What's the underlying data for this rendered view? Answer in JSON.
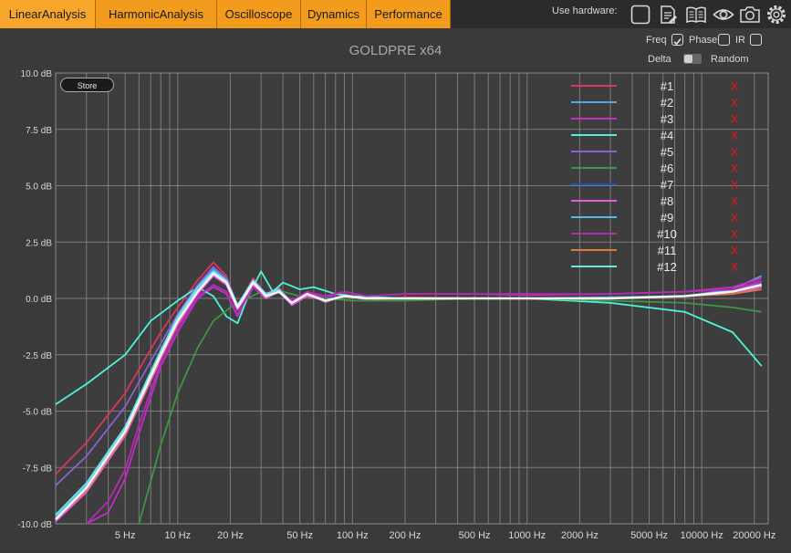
{
  "tabs": [
    {
      "label": "LinearAnalysis",
      "active": true
    },
    {
      "label": "HarmonicAnalysis",
      "active": false
    },
    {
      "label": "Oscilloscope",
      "active": false
    },
    {
      "label": "Dynamics",
      "active": false
    },
    {
      "label": "Performance",
      "active": false
    }
  ],
  "hardware": {
    "label": "Use hardware:",
    "icons": [
      "checkbox-icon",
      "notes-icon",
      "book-icon",
      "eye-icon",
      "camera-icon",
      "gear-icon"
    ]
  },
  "title": "GOLDPRE x64",
  "options": {
    "freq": {
      "label": "Freq",
      "checked": true
    },
    "phase": {
      "label": "Phase",
      "checked": false
    },
    "ir": {
      "label": "IR",
      "checked": false
    },
    "delta": {
      "label": "Delta"
    },
    "random": {
      "label": "Random"
    }
  },
  "store_label": "Store",
  "remove_mark": "X",
  "colors": {
    "tab": "#f39b1d",
    "background": "#3a3a3a",
    "grid": "#8c8c8c",
    "remove": "#e01818"
  },
  "chart_data": {
    "type": "line",
    "xscale": "log",
    "xlim": [
      2,
      24000
    ],
    "ylim": [
      -10,
      10
    ],
    "grid": true,
    "legend_position": "top-right",
    "x_ticks": [
      {
        "value": 5,
        "label": "5 Hz"
      },
      {
        "value": 10,
        "label": "10 Hz"
      },
      {
        "value": 20,
        "label": "20 Hz"
      },
      {
        "value": 50,
        "label": "50 Hz"
      },
      {
        "value": 100,
        "label": "100 Hz"
      },
      {
        "value": 200,
        "label": "200 Hz"
      },
      {
        "value": 500,
        "label": "500 Hz"
      },
      {
        "value": 1000,
        "label": "1000 Hz"
      },
      {
        "value": 2000,
        "label": "2000 Hz"
      },
      {
        "value": 5000,
        "label": "5000 Hz"
      },
      {
        "value": 10000,
        "label": "10000 Hz"
      },
      {
        "value": 20000,
        "label": "20000 Hz"
      }
    ],
    "y_ticks": [
      {
        "value": 10,
        "label": "10.0 dB"
      },
      {
        "value": 7.5,
        "label": "7.5 dB"
      },
      {
        "value": 5,
        "label": "5.0 dB"
      },
      {
        "value": 2.5,
        "label": "2.5 dB"
      },
      {
        "value": 0,
        "label": "0.0 dB"
      },
      {
        "value": -2.5,
        "label": "-2.5 dB"
      },
      {
        "value": -5,
        "label": "-5.0 dB"
      },
      {
        "value": -7.5,
        "label": "-7.5 dB"
      },
      {
        "value": -10,
        "label": "-10.0 dB"
      }
    ],
    "series": [
      {
        "name": "#1",
        "color": "#d8365f",
        "x": [
          2,
          3,
          5,
          8,
          10,
          13,
          16,
          19,
          22,
          27,
          32,
          38,
          45,
          55,
          70,
          90,
          120,
          200,
          500,
          1000,
          3000,
          8000,
          15000,
          22000
        ],
        "y": [
          -7.8,
          -6.4,
          -4.2,
          -1.5,
          -0.4,
          0.8,
          1.6,
          1.0,
          -0.4,
          0.9,
          0.2,
          0.5,
          -0.3,
          0.3,
          -0.2,
          0.2,
          -0.1,
          0.05,
          0.0,
          0.0,
          0.05,
          0.1,
          0.3,
          0.8
        ]
      },
      {
        "name": "#2",
        "color": "#4fa9e8",
        "x": [
          2,
          3,
          5,
          8,
          10,
          13,
          16,
          19,
          22,
          27,
          32,
          38,
          45,
          55,
          70,
          90,
          120,
          200,
          500,
          1000,
          3000,
          8000,
          15000,
          22000
        ],
        "y": [
          -9.8,
          -8.5,
          -6.0,
          -2.5,
          -1.0,
          0.5,
          1.3,
          0.8,
          -0.3,
          0.7,
          0.2,
          0.4,
          -0.2,
          0.2,
          -0.15,
          0.1,
          0.0,
          0.0,
          0.0,
          0.0,
          0.05,
          0.1,
          0.4,
          1.0
        ]
      },
      {
        "name": "#3",
        "color": "#c12ec6",
        "x": [
          3,
          4,
          5,
          6,
          8,
          10,
          13,
          16,
          19,
          22,
          27,
          32,
          38,
          45,
          55,
          70,
          90,
          120,
          200,
          500,
          1000,
          3000,
          8000,
          15000,
          22000
        ],
        "y": [
          -10,
          -9.5,
          -8.0,
          -6.0,
          -3.0,
          -1.5,
          0.0,
          0.5,
          0.2,
          -0.8,
          0.5,
          0.0,
          0.4,
          -0.2,
          0.3,
          0.0,
          0.3,
          0.1,
          0.2,
          0.2,
          0.15,
          0.2,
          0.3,
          0.5,
          0.9
        ]
      },
      {
        "name": "#4",
        "color": "#4ff2d9",
        "x": [
          2,
          3,
          5,
          7,
          10,
          13,
          16,
          19,
          22,
          25,
          30,
          35,
          40,
          50,
          60,
          80,
          100,
          200,
          500,
          1000,
          3000,
          8000,
          15000,
          22000
        ],
        "y": [
          -4.7,
          -3.8,
          -2.5,
          -1.0,
          -0.1,
          0.5,
          0.1,
          -0.8,
          -1.1,
          0.0,
          1.2,
          0.3,
          0.7,
          0.4,
          0.5,
          0.2,
          0.1,
          0.0,
          0.0,
          0.0,
          -0.2,
          -0.6,
          -1.5,
          -3.0
        ]
      },
      {
        "name": "#5",
        "color": "#8c5fd6",
        "x": [
          2,
          3,
          5,
          8,
          10,
          13,
          16,
          19,
          22,
          27,
          32,
          38,
          45,
          55,
          70,
          90,
          120,
          200,
          500,
          1000,
          3000,
          8000,
          15000,
          22000
        ],
        "y": [
          -8.3,
          -7.0,
          -4.8,
          -2.0,
          -0.7,
          0.6,
          1.4,
          0.9,
          -0.3,
          0.8,
          0.1,
          0.4,
          -0.2,
          0.2,
          -0.1,
          0.1,
          0.0,
          0.0,
          0.0,
          0.0,
          0.0,
          0.1,
          0.3,
          0.7
        ]
      },
      {
        "name": "#6",
        "color": "#3f9446",
        "x": [
          6,
          8,
          10,
          13,
          16,
          20,
          25,
          30,
          35,
          40,
          50,
          70,
          100,
          200,
          500,
          1000,
          3000,
          8000,
          15000,
          22000
        ],
        "y": [
          -10,
          -6.5,
          -4.2,
          -2.2,
          -1.0,
          -0.4,
          0.0,
          0.3,
          0.2,
          0.3,
          0.1,
          0.0,
          -0.1,
          -0.1,
          0.0,
          0.0,
          -0.1,
          -0.2,
          -0.4,
          -0.6
        ]
      },
      {
        "name": "#7",
        "color": "#1c4fc4",
        "x": [
          2,
          3,
          5,
          8,
          10,
          13,
          16,
          19,
          22,
          27,
          32,
          38,
          45,
          55,
          70,
          90,
          120,
          200,
          500,
          1000,
          3000,
          8000,
          15000,
          22000
        ],
        "y": [
          -9.9,
          -8.4,
          -6.0,
          -2.6,
          -1.1,
          0.3,
          1.1,
          0.7,
          -0.4,
          0.7,
          0.1,
          0.3,
          -0.2,
          0.2,
          -0.1,
          0.1,
          0.0,
          0.0,
          0.0,
          0.0,
          0.0,
          0.1,
          0.2,
          0.5
        ]
      },
      {
        "name": "#8",
        "color": "#e75be1",
        "x": [
          2,
          3,
          5,
          8,
          10,
          13,
          16,
          19,
          22,
          27,
          32,
          38,
          45,
          55,
          70,
          90,
          120,
          200,
          500,
          1000,
          3000,
          8000,
          15000,
          22000
        ],
        "y": [
          -9.9,
          -8.6,
          -6.1,
          -2.7,
          -1.2,
          0.2,
          1.0,
          0.6,
          -0.5,
          0.6,
          0.0,
          0.3,
          -0.3,
          0.1,
          -0.1,
          0.1,
          0.0,
          0.0,
          0.0,
          0.0,
          0.0,
          0.1,
          0.2,
          0.5
        ]
      },
      {
        "name": "#9",
        "color": "#5ab8e8",
        "x": [
          2,
          3,
          5,
          8,
          10,
          13,
          16,
          19,
          22,
          27,
          32,
          38,
          45,
          55,
          70,
          90,
          120,
          200,
          500,
          1000,
          3000,
          8000,
          15000,
          22000
        ],
        "y": [
          -9.7,
          -8.3,
          -5.8,
          -2.4,
          -0.9,
          0.4,
          1.2,
          0.8,
          -0.3,
          0.7,
          0.1,
          0.4,
          -0.2,
          0.2,
          -0.1,
          0.1,
          0.0,
          0.0,
          0.0,
          0.0,
          0.0,
          0.1,
          0.3,
          0.6
        ]
      },
      {
        "name": "#10",
        "color": "#b42ab4",
        "x": [
          3,
          4,
          5,
          6,
          8,
          10,
          13,
          16,
          19,
          22,
          27,
          32,
          38,
          45,
          55,
          70,
          90,
          120,
          200,
          500,
          1000,
          3000,
          8000,
          15000,
          22000
        ],
        "y": [
          -10,
          -9.0,
          -7.6,
          -5.6,
          -2.8,
          -1.3,
          0.1,
          0.6,
          0.3,
          -0.7,
          0.5,
          0.1,
          0.4,
          -0.1,
          0.3,
          0.1,
          0.3,
          0.1,
          0.2,
          0.2,
          0.2,
          0.2,
          0.3,
          0.4,
          0.8
        ]
      },
      {
        "name": "#11",
        "color": "#e07a3a",
        "x": [
          2,
          3,
          5,
          8,
          10,
          13,
          16,
          19,
          22,
          27,
          32,
          38,
          45,
          55,
          70,
          90,
          120,
          200,
          500,
          1000,
          3000,
          8000,
          15000,
          22000
        ],
        "y": [
          -9.8,
          -8.5,
          -6.0,
          -2.6,
          -1.1,
          0.3,
          1.1,
          0.7,
          -0.4,
          0.7,
          0.1,
          0.3,
          -0.2,
          0.2,
          -0.1,
          0.1,
          0.0,
          0.0,
          0.0,
          0.0,
          0.0,
          0.1,
          0.2,
          0.4
        ]
      },
      {
        "name": "#12",
        "color": "#66e6ee",
        "x": [
          2,
          3,
          5,
          8,
          10,
          13,
          16,
          19,
          22,
          27,
          32,
          38,
          45,
          55,
          70,
          90,
          120,
          200,
          500,
          1000,
          3000,
          8000,
          15000,
          22000
        ],
        "y": [
          -9.6,
          -8.2,
          -5.7,
          -2.3,
          -0.8,
          0.5,
          1.2,
          0.8,
          -0.3,
          0.8,
          0.2,
          0.4,
          -0.2,
          0.2,
          -0.1,
          0.1,
          0.0,
          0.0,
          0.0,
          0.0,
          0.0,
          0.1,
          0.3,
          0.6
        ]
      },
      {
        "color": "#f2f2f2",
        "x": [
          2,
          3,
          5,
          8,
          10,
          13,
          16,
          19,
          22,
          27,
          32,
          38,
          45,
          55,
          70,
          90,
          120,
          200,
          500,
          1000,
          3000,
          8000,
          15000,
          22000
        ],
        "y": [
          -9.8,
          -8.4,
          -5.9,
          -2.5,
          -1.0,
          0.3,
          1.1,
          0.7,
          -0.4,
          0.7,
          0.1,
          0.3,
          -0.2,
          0.2,
          -0.1,
          0.1,
          0.0,
          0.0,
          0.0,
          0.0,
          0.0,
          0.1,
          0.3,
          0.6
        ]
      }
    ]
  }
}
